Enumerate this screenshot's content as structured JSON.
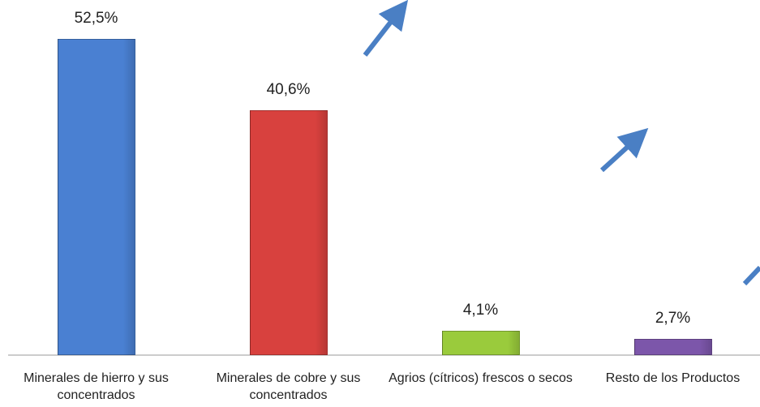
{
  "chart_data": {
    "type": "bar",
    "categories": [
      "Minerales de hierro y sus concentrados",
      "Minerales de cobre y sus concentrados",
      "Agrios (cítricos) frescos o secos",
      "Resto de los Productos"
    ],
    "values": [
      52.5,
      40.6,
      4.1,
      2.7
    ],
    "value_labels": [
      "52,5%",
      "40,6%",
      "4,1%",
      "2,7%"
    ],
    "colors": [
      "#4a80d2",
      "#d8413e",
      "#9acb3c",
      "#7c56aa"
    ]
  }
}
